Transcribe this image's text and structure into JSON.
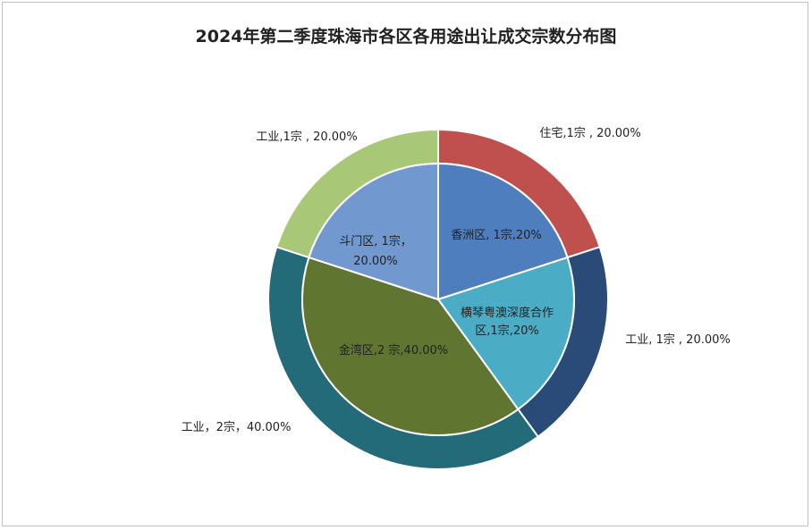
{
  "chart_data": {
    "type": "pie",
    "title": "2024年第二季度珠海市各区各用途出让成交宗数分布图",
    "inner_ring": [
      {
        "name": "香洲区",
        "value": 1,
        "label_lines": [
          "香洲区, 1宗,20%"
        ],
        "color": "#4f7ebf"
      },
      {
        "name": "横琴粤澳深度合作区",
        "value": 1,
        "label_lines": [
          "横琴粤澳深度合作",
          "区,1宗,20%"
        ],
        "color": "#4bacc6"
      },
      {
        "name": "金湾区",
        "value": 2,
        "label_lines": [
          "金湾区,2 宗,40.00%"
        ],
        "color": "#5f7530"
      },
      {
        "name": "斗门区",
        "value": 1,
        "label_lines": [
          "斗门区, 1宗，",
          "20.00%"
        ],
        "color": "#7199d0"
      }
    ],
    "outer_ring": [
      {
        "name": "住宅",
        "value": 1,
        "label": "住宅,1宗 , 20.00%",
        "color": "#c0504d"
      },
      {
        "name": "工业",
        "value": 1,
        "label": "工业, 1宗 , 20.00%",
        "color": "#2a4a78"
      },
      {
        "name": "工业",
        "value": 2,
        "label": "工业，2宗，40.00%",
        "color": "#246b7a"
      },
      {
        "name": "工业",
        "value": 1,
        "label": "工业,1宗 , 20.00%",
        "color": "#a9c877"
      }
    ]
  }
}
